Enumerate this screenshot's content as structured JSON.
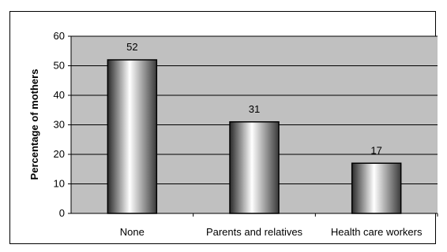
{
  "chart_data": {
    "type": "bar",
    "title": "",
    "xlabel": "",
    "ylabel": "Percentage of mothers",
    "categories": [
      "None",
      "Parents and relatives",
      "Health care workers"
    ],
    "values": [
      52,
      31,
      17
    ],
    "ylim": [
      0,
      60
    ],
    "yticks": [
      "0",
      "10",
      "20",
      "30",
      "40",
      "50",
      "60"
    ],
    "data_labels": [
      "52",
      "31",
      "17"
    ],
    "grid": true,
    "legend": "none",
    "colors": {
      "plot_background": "#c0c0c0",
      "gridline": "#000000",
      "bar_light": "#ffffff",
      "bar_dark": "#2a2a2a",
      "bar_outline": "#000000"
    }
  }
}
